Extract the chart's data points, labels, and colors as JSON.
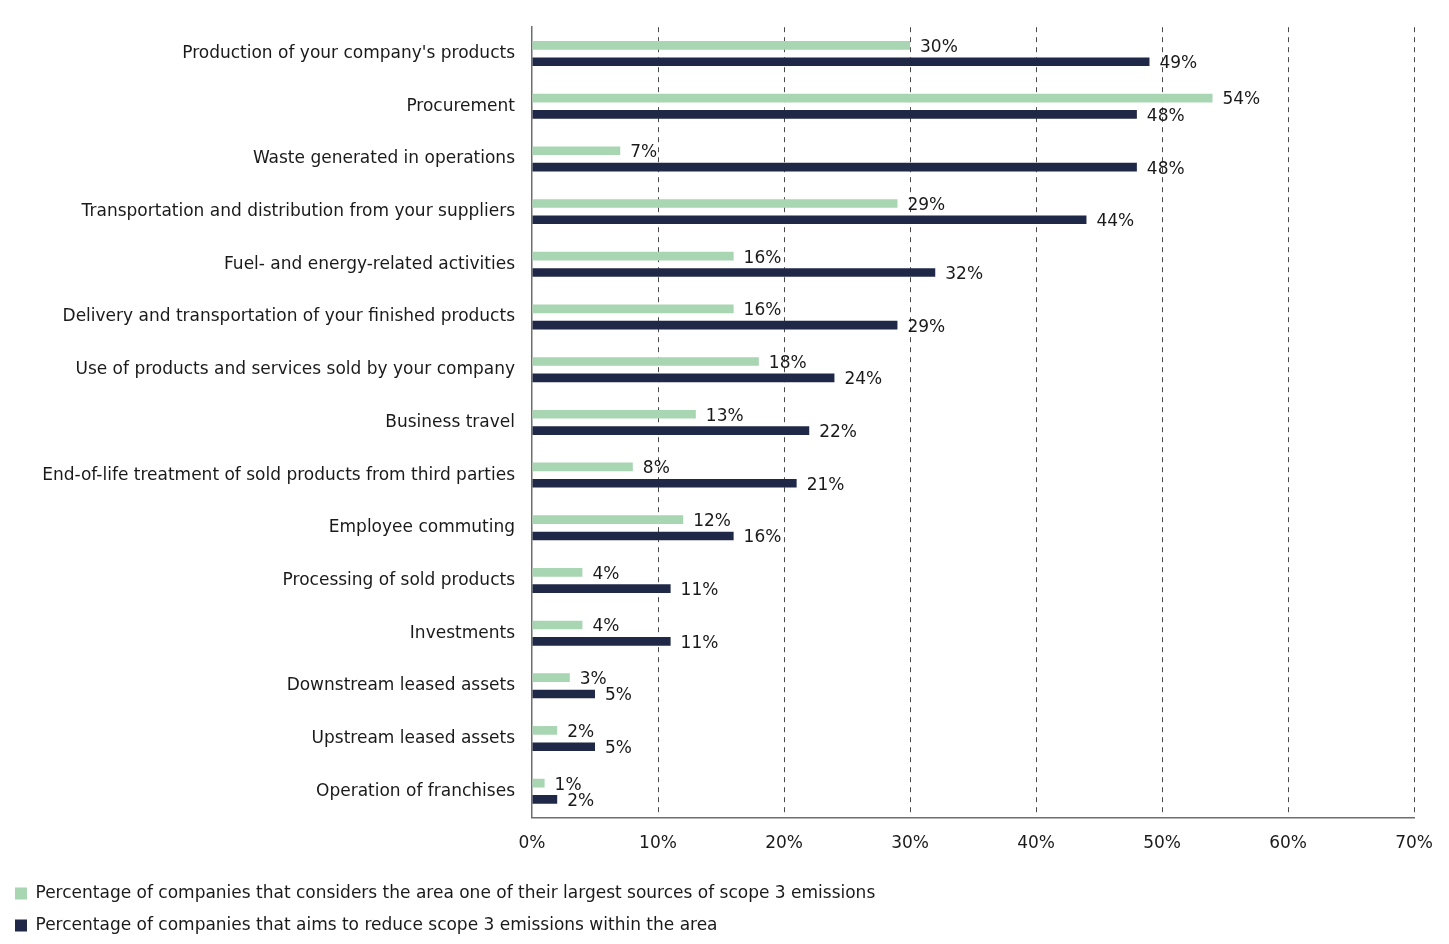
{
  "chart_data": {
    "type": "bar",
    "orientation": "horizontal",
    "categories": [
      "Production of your company's products",
      "Procurement",
      "Waste generated in operations",
      "Transportation and distribution from your suppliers",
      "Fuel- and energy-related activities",
      "Delivery and transportation of your finished products",
      "Use of products and services sold by your company",
      "Business travel",
      "End-of-life treatment of sold products from third parties",
      "Employee commuting",
      "Processing of sold products",
      "Investments",
      "Downstream leased assets",
      "Upstream leased assets",
      "Operation of franchises"
    ],
    "series": [
      {
        "name": "Percentage of companies that considers the area one of their largest sources of scope 3 emissions",
        "color": "#a8d5b2",
        "values": [
          30,
          54,
          7,
          29,
          16,
          16,
          18,
          13,
          8,
          12,
          4,
          4,
          3,
          2,
          1
        ],
        "value_labels": [
          "30%",
          "54%",
          "7%",
          "29%",
          "16%",
          "16%",
          "18%",
          "13%",
          "8%",
          "12%",
          "4%",
          "4%",
          "3%",
          "2%",
          "1%"
        ]
      },
      {
        "name": "Percentage of companies that aims to reduce scope 3 emissions within the area",
        "color": "#1f2847",
        "values": [
          49,
          48,
          48,
          44,
          32,
          29,
          24,
          22,
          21,
          16,
          11,
          11,
          5,
          5,
          2
        ],
        "value_labels": [
          "49%",
          "48%",
          "48%",
          "44%",
          "32%",
          "29%",
          "24%",
          "22%",
          "21%",
          "16%",
          "11%",
          "11%",
          "5%",
          "5%",
          "2%"
        ]
      }
    ],
    "xlim": [
      0,
      70
    ],
    "xticks": [
      {
        "value": 0,
        "label": "0%"
      },
      {
        "value": 10,
        "label": "10%"
      },
      {
        "value": 20,
        "label": "20%"
      },
      {
        "value": 30,
        "label": "30%"
      },
      {
        "value": 40,
        "label": "40%"
      },
      {
        "value": 50,
        "label": "50%"
      },
      {
        "value": 60,
        "label": "60%"
      },
      {
        "value": 70,
        "label": "70%"
      }
    ],
    "grid": "x",
    "legend": "bottom left"
  }
}
